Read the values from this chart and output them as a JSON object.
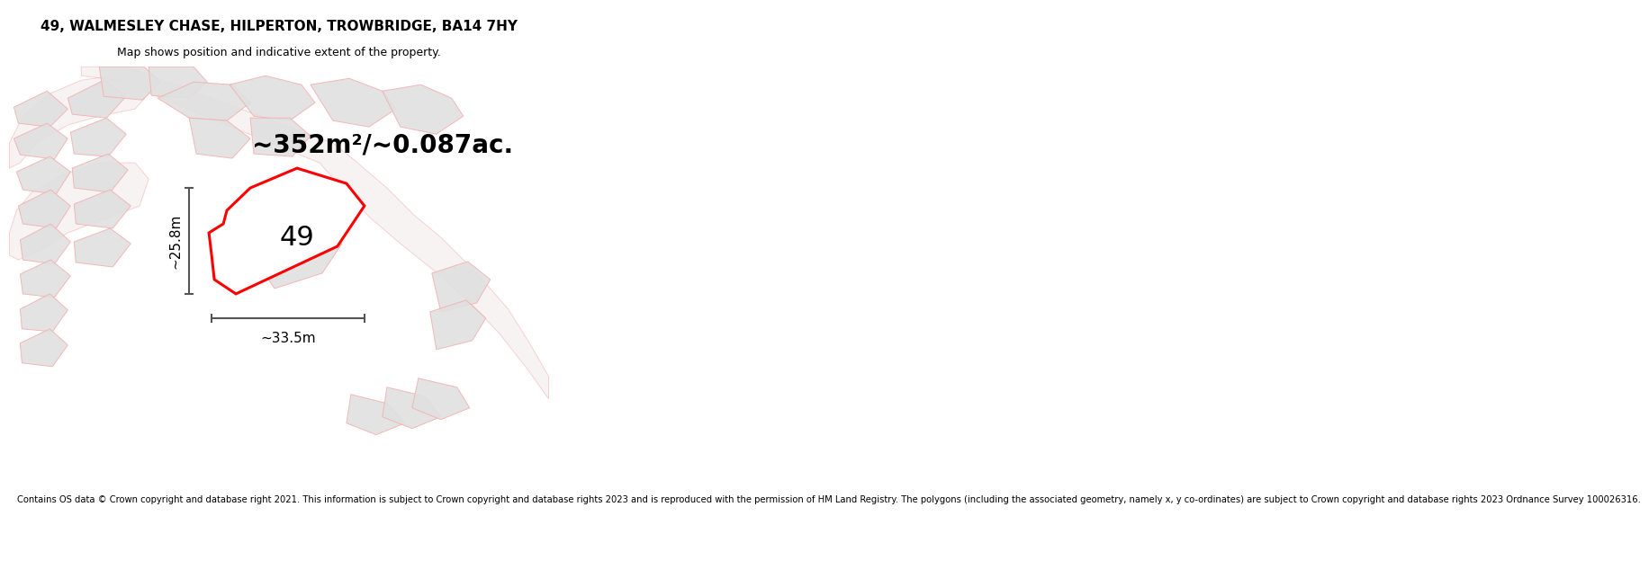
{
  "title": "49, WALMESLEY CHASE, HILPERTON, TROWBRIDGE, BA14 7HY",
  "subtitle": "Map shows position and indicative extent of the property.",
  "area_text": "~352m²/~0.087ac.",
  "label_49": "49",
  "dim_height": "~25.8m",
  "dim_width": "~33.5m",
  "footer": "Contains OS data © Crown copyright and database right 2021. This information is subject to Crown copyright and database rights 2023 and is reproduced with the permission of HM Land Registry. The polygons (including the associated geometry, namely x, y co-ordinates) are subject to Crown copyright and database rights 2023 Ordnance Survey 100026316.",
  "bg_color": "#ffffff",
  "map_bg": "#ffffff",
  "plot_outline_color": "#ff0000",
  "building_fill": "#e0e0e0",
  "building_edge": "#f5b0b0",
  "road_fill": "#f0e8e8",
  "road_edge": "#f0a0a0",
  "title_fontsize": 11,
  "subtitle_fontsize": 9,
  "area_fontsize": 20,
  "label_fontsize": 22,
  "dim_fontsize": 11,
  "footer_fontsize": 7.2
}
